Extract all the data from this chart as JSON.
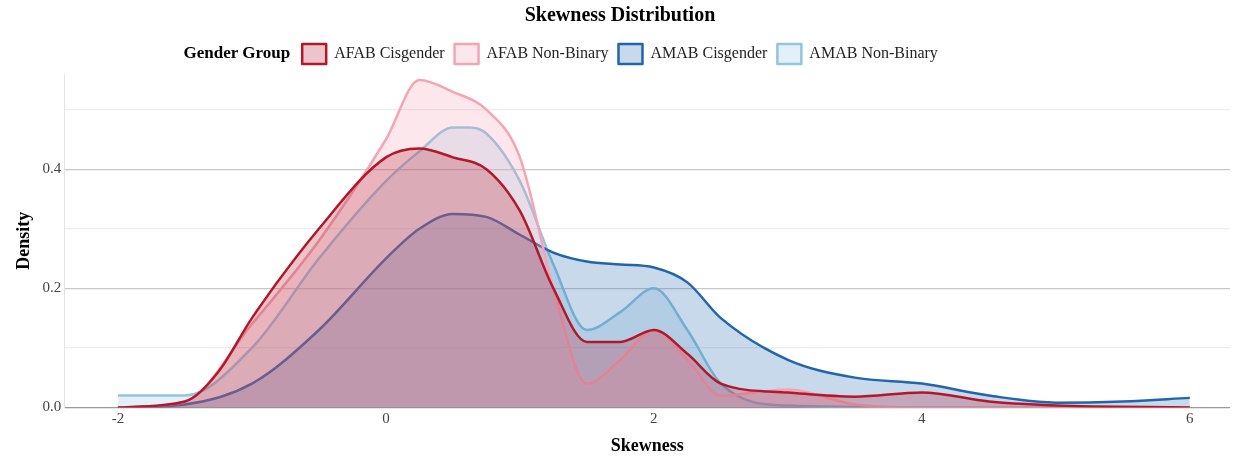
{
  "chart_data": {
    "type": "area",
    "title": "Skewness Distribution",
    "xlabel": "Skewness",
    "ylabel": "Density",
    "legend_title": "Gender Group",
    "legend": "top",
    "grid": "y",
    "line_style": "solid",
    "marker": "none",
    "xlim": [
      -2.4,
      6.3
    ],
    "xticks": [
      -2,
      0,
      2,
      4,
      6
    ],
    "ylim": [
      0,
      0.56
    ],
    "yticks": [
      {
        "value": 0,
        "label": "0.0"
      },
      {
        "value": 0.1,
        "label": null
      },
      {
        "value": 0.2,
        "label": "0.2"
      },
      {
        "value": 0.3,
        "label": null
      },
      {
        "value": 0.4,
        "label": "0.4"
      },
      {
        "value": 0.5,
        "label": null
      }
    ],
    "series": [
      {
        "name": "AFAB Cisgender",
        "color": "#b2182b",
        "x": [
          -2,
          -1.5,
          -1.25,
          -1,
          -0.5,
          0,
          0.25,
          0.5,
          0.75,
          1,
          1.25,
          1.5,
          1.75,
          2,
          2.25,
          2.5,
          3,
          3.5,
          4,
          4.5,
          5,
          6
        ],
        "values": [
          0,
          0.01,
          0.06,
          0.15,
          0.3,
          0.42,
          0.435,
          0.42,
          0.4,
          0.33,
          0.2,
          0.11,
          0.11,
          0.13,
          0.09,
          0.04,
          0.025,
          0.018,
          0.025,
          0.01,
          0.003,
          0
        ]
      },
      {
        "name": "AFAB Non-Binary",
        "color": "#f4a5b5",
        "x": [
          -2,
          -1.5,
          -1,
          -0.5,
          0,
          0.25,
          0.5,
          0.75,
          1,
          1.25,
          1.5,
          1.75,
          2,
          2.25,
          2.5,
          3,
          3.5,
          4,
          6
        ],
        "values": [
          0,
          0.01,
          0.14,
          0.28,
          0.45,
          0.55,
          0.53,
          0.5,
          0.42,
          0.2,
          0.04,
          0.08,
          0.13,
          0.08,
          0.02,
          0.03,
          0.005,
          0,
          0
        ]
      },
      {
        "name": "AMAB Cisgender",
        "color": "#2166ac",
        "x": [
          -2,
          -1.5,
          -1,
          -0.5,
          0,
          0.25,
          0.5,
          0.75,
          1,
          1.25,
          1.5,
          1.75,
          2,
          2.25,
          2.5,
          3,
          3.5,
          4,
          4.5,
          5,
          5.5,
          6
        ],
        "values": [
          0,
          0.005,
          0.04,
          0.13,
          0.25,
          0.3,
          0.325,
          0.32,
          0.29,
          0.26,
          0.245,
          0.24,
          0.235,
          0.21,
          0.15,
          0.08,
          0.05,
          0.04,
          0.02,
          0.008,
          0.01,
          0.016
        ]
      },
      {
        "name": "AMAB Non-Binary",
        "color": "#92c5de",
        "x": [
          -2,
          -1.5,
          -1,
          -0.5,
          0,
          0.25,
          0.5,
          0.625,
          0.75,
          1,
          1.25,
          1.5,
          1.75,
          2,
          2.25,
          2.5,
          3,
          4,
          6
        ],
        "values": [
          0.02,
          0.02,
          0.1,
          0.25,
          0.38,
          0.43,
          0.47,
          0.47,
          0.46,
          0.38,
          0.24,
          0.13,
          0.16,
          0.2,
          0.13,
          0.04,
          0.003,
          0,
          0
        ]
      }
    ]
  }
}
